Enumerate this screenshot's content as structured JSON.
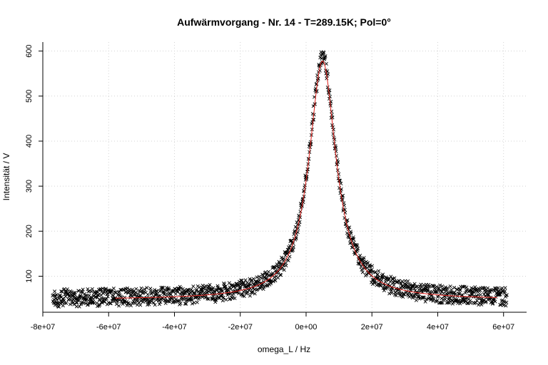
{
  "chart_data": {
    "type": "scatter",
    "title": "Aufwärmvorgang - Nr. 14 - T=289.15K; Pol=0°",
    "xlabel": "omega_L / Hz",
    "ylabel": "Intensität / V",
    "xlim": [
      -80000000.0,
      67000000.0
    ],
    "ylim": [
      20,
      620
    ],
    "xticks": [
      -80000000.0,
      -60000000.0,
      -40000000.0,
      -20000000.0,
      0,
      20000000.0,
      40000000.0,
      60000000.0
    ],
    "xtick_labels": [
      "-8e+07",
      "-6e+07",
      "-4e+07",
      "-2e+07",
      "0e+00",
      "2e+07",
      "4e+07",
      "6e+07"
    ],
    "yticks": [
      100,
      200,
      300,
      400,
      500,
      600
    ],
    "ytick_labels": [
      "100",
      "200",
      "300",
      "400",
      "500",
      "600"
    ],
    "grid": true,
    "marker": "x",
    "series": [
      {
        "kind": "scatter",
        "x_range": [
          -77000000.0,
          61000000.0
        ],
        "n_points": 1400,
        "peak_center": 5000000.0,
        "peak_hwhm": 5000000.0,
        "peak_amplitude": 535,
        "baseline": 50,
        "baseline_levels": [
          35,
          42,
          50,
          58,
          65
        ],
        "saturation": 600
      },
      {
        "kind": "fit-line",
        "x_range": [
          -58000000.0,
          58000000.0
        ],
        "model": "lorentzian",
        "center": 5000000.0,
        "hwhm": 5000000.0,
        "amplitude": 530,
        "baseline": 48,
        "color": "#e0201b"
      }
    ]
  }
}
